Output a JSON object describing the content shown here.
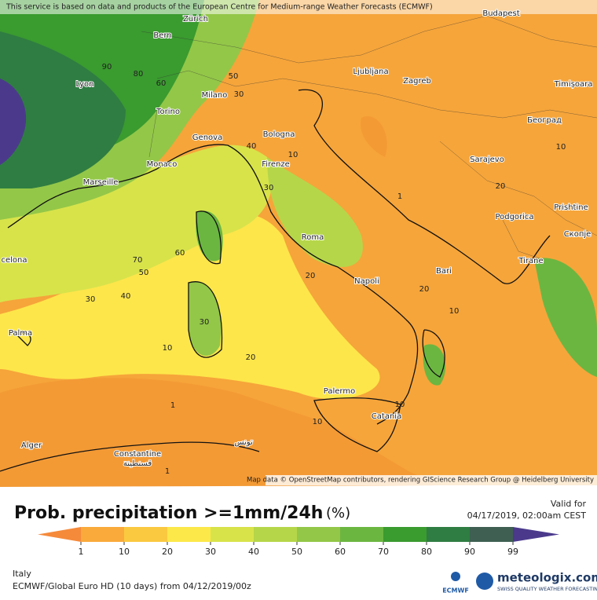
{
  "header": {
    "notice": "This service is based on data and products of the European Centre for Medium-range Weather Forecasts (ECMWF)"
  },
  "map": {
    "cities": [
      "Zürich",
      "Bern",
      "Budapest",
      "Lyon",
      "Milano",
      "Ljubljana",
      "Zagreb",
      "Timișoara",
      "Torino",
      "Београд",
      "Genova",
      "Bologna",
      "Monaco",
      "Firenze",
      "Sarajevo",
      "Marseille",
      "Podgorica",
      "Prishtine",
      "Roma",
      "Скопје",
      "Tirane",
      "celona",
      "Napoli",
      "Bari",
      "Palma",
      "Palermo",
      "Catania",
      "Alger",
      "Constantine",
      "قسنطينة",
      "تونس"
    ],
    "contour_labels": [
      90,
      80,
      60,
      50,
      30,
      40,
      10,
      30,
      1,
      70,
      60,
      50,
      40,
      30,
      20,
      20,
      10,
      30,
      10,
      20,
      1,
      10,
      10,
      20,
      10,
      1
    ],
    "attribution": "Map data © OpenStreetMap contributors, rendering GIScience Research Group @ Heidelberg University"
  },
  "legend": {
    "title": "Prob. precipitation >=1mm/24h",
    "unit": "(%)",
    "ticks": [
      1,
      10,
      20,
      30,
      40,
      50,
      60,
      70,
      80,
      90,
      99
    ],
    "colors": [
      "#f58a3b",
      "#f9aa3a",
      "#fbc940",
      "#fde84a",
      "#d8e34a",
      "#b6d64a",
      "#93c748",
      "#6bb641",
      "#3a9b2f",
      "#2f7d42",
      "#3e5f52",
      "#4b3a8c"
    ]
  },
  "valid": {
    "label": "Valid for",
    "time": "04/17/2019, 02:00am CEST"
  },
  "footer": {
    "region": "Italy",
    "model": "ECMWF/Global Euro HD (10 days) from 04/12/2019/00z",
    "ecmwf": "ECMWF",
    "brand": "meteologix.com",
    "slogan": "SWISS QUALITY WEATHER FORECASTING"
  }
}
